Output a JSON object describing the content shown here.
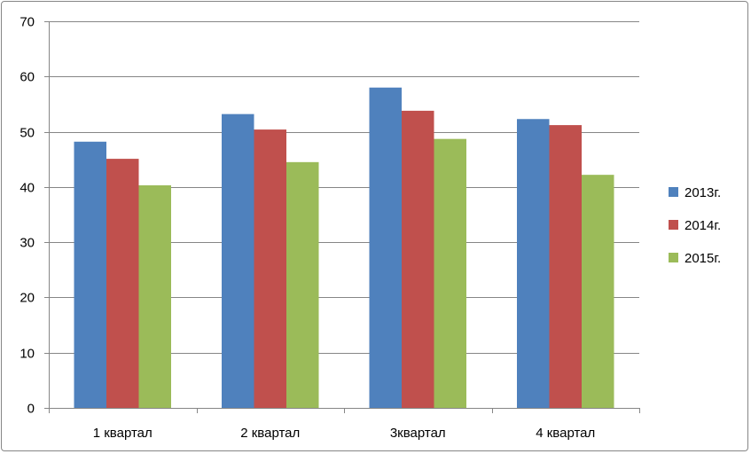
{
  "chart_data": {
    "type": "bar",
    "categories": [
      "1 квартал",
      "2 квартал",
      "3квартал",
      "4 квартал"
    ],
    "series": [
      {
        "name": "2013г.",
        "color": "#4F81BD",
        "values": [
          48.2,
          53.2,
          58.0,
          52.3
        ]
      },
      {
        "name": "2014г.",
        "color": "#C0504D",
        "values": [
          45.1,
          50.4,
          53.8,
          51.2
        ]
      },
      {
        "name": "2015г.",
        "color": "#9BBB59",
        "values": [
          40.3,
          44.5,
          48.7,
          42.2
        ]
      }
    ],
    "ylim": [
      0,
      70
    ],
    "yticks": [
      0,
      10,
      20,
      30,
      40,
      50,
      60,
      70
    ],
    "grid": true,
    "legend": "right",
    "title": "",
    "xlabel": "",
    "ylabel": ""
  }
}
